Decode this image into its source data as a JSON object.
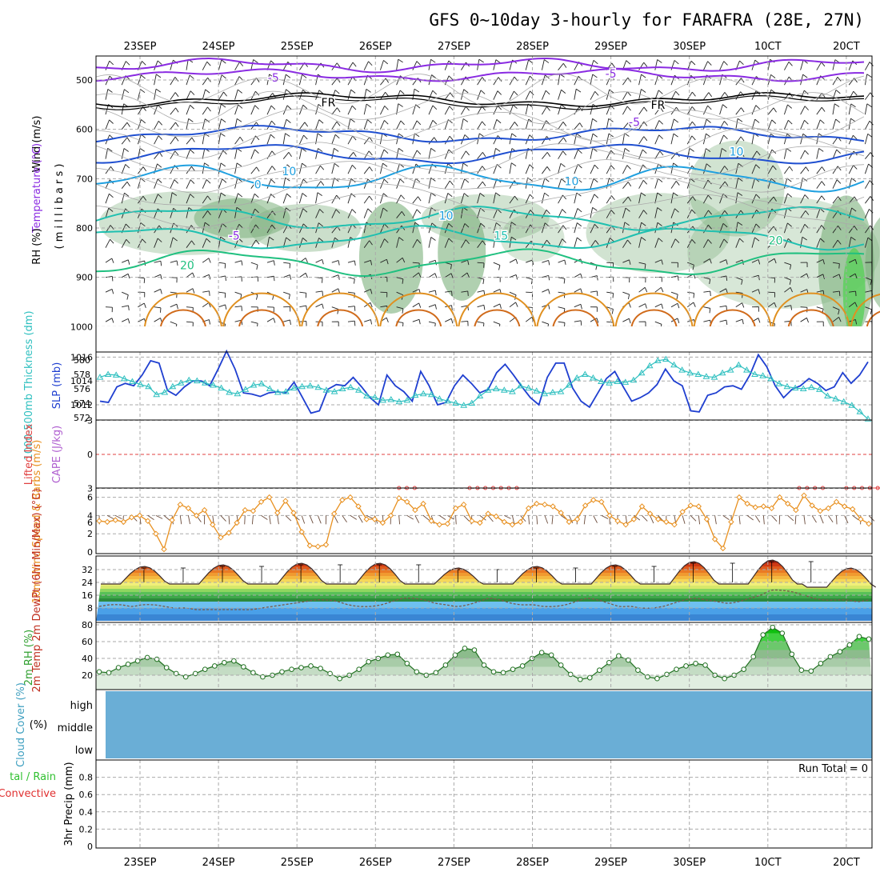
{
  "title": "GFS 0~10day 3-hourly for FARAFRA (28E, 27N)",
  "dates": [
    "23SEP",
    "24SEP",
    "25SEP",
    "26SEP",
    "27SEP",
    "28SEP",
    "29SEP",
    "30SEP",
    "1OCT",
    "2OCT"
  ],
  "date_labels_display": [
    "23SEP",
    "24SEP",
    "25SEP",
    "26SEP",
    "27SEP",
    "28SEP",
    "29SEP",
    "30SEP",
    "10CT",
    "20CT"
  ],
  "colors": {
    "temp_cold": "#8a2be2",
    "freezing": "#000000",
    "temp_blue": "#1f4fd0",
    "temp_cyan": "#1fa0e0",
    "temp_teal": "#1fc0b0",
    "temp_green": "#20c080",
    "temp_warm": "#e09020",
    "slp": "#1f3fd0",
    "thickness": "#30c0c0",
    "lifted_index": "#e04040",
    "wind10m": "#e8901f",
    "rh_fill": "#40b040",
    "cloud_fill": "#6aaed6"
  },
  "chart_data": [
    {
      "type": "line",
      "name": "upper-air-cross-section",
      "title": "Wind (m/s) / Temperature (°C) / RH (%)",
      "ylabel": "millibars",
      "y_ticks": [
        500,
        600,
        700,
        800,
        900,
        1000
      ],
      "ylim": [
        1050,
        450
      ],
      "panel_labels": [
        "Wind (m/s)",
        "Temperature (°C)",
        "RH (%)",
        "( m i l l i b a r s )"
      ],
      "isotherm_labels": [
        {
          "label": "-5",
          "level": 495,
          "day": 1.7
        },
        {
          "label": "-5",
          "level": 487,
          "day": 6.0
        },
        {
          "label": "FR",
          "level": 545,
          "day": 2.4
        },
        {
          "label": "FR",
          "level": 550,
          "day": 6.6
        },
        {
          "label": "-5",
          "level": 585,
          "day": 6.3
        },
        {
          "label": "0",
          "level": 712,
          "day": 1.5
        },
        {
          "label": "10",
          "level": 705,
          "day": 5.5
        },
        {
          "label": "-5",
          "level": 815,
          "day": 1.2
        },
        {
          "label": "15",
          "level": 815,
          "day": 4.6
        },
        {
          "label": "20",
          "level": 875,
          "day": 0.6
        },
        {
          "label": "20",
          "level": 825,
          "day": 8.1
        },
        {
          "label": "10",
          "level": 685,
          "day": 1.9
        },
        {
          "label": "10",
          "level": 775,
          "day": 3.9
        },
        {
          "label": "10",
          "level": 645,
          "day": 7.6
        }
      ]
    },
    {
      "type": "line",
      "name": "slp-thickness",
      "ylabel_left": "1000-500mb Thickness (dm)",
      "ylabel_right": "SLP (mb)",
      "thickness_ticks": [
        572,
        574,
        576,
        578,
        580
      ],
      "slp_ticks": [
        1012,
        1014,
        1016
      ],
      "series": [
        {
          "name": "SLP (mb)",
          "values": [
            1012.3,
            1012.2,
            1013.5,
            1013.8,
            1013.6,
            1014.5,
            1015.7,
            1015.5,
            1013.2,
            1012.8,
            1013.5,
            1014.0,
            1014.0,
            1013.6,
            1015.0,
            1016.5,
            1015.0,
            1013.0,
            1012.9,
            1012.7,
            1013.0,
            1013.1,
            1013.0,
            1013.9,
            1012.6,
            1011.3,
            1011.5,
            1013.3,
            1013.7,
            1013.6,
            1014.3,
            1013.5,
            1012.6,
            1012.0,
            1014.5,
            1013.6,
            1013.1,
            1012.3,
            1014.8,
            1013.6,
            1012.0,
            1012.2,
            1013.6,
            1014.5,
            1013.8,
            1013.0,
            1013.3,
            1014.7,
            1015.4,
            1014.5,
            1013.5,
            1012.6,
            1012.0,
            1014.3,
            1015.5,
            1015.5,
            1013.4,
            1012.3,
            1011.8,
            1013.0,
            1014.2,
            1014.8,
            1013.5,
            1012.3,
            1012.6,
            1013.0,
            1013.7,
            1015.0,
            1014.0,
            1013.6,
            1011.5,
            1011.4,
            1012.8,
            1013.0,
            1013.5,
            1013.6,
            1013.3,
            1014.5,
            1016.2,
            1015.2,
            1013.6,
            1012.6,
            1013.3,
            1013.6,
            1014.2,
            1013.8,
            1013.2,
            1013.5,
            1014.7,
            1013.8,
            1014.5,
            1015.6
          ]
        },
        {
          "name": "1000-500mb Thickness (dm)",
          "values": [
            577.6,
            578.0,
            577.9,
            577.4,
            577.0,
            576.6,
            576.3,
            575.2,
            575.5,
            576.3,
            576.8,
            577.2,
            577.1,
            576.8,
            576.5,
            576.1,
            575.5,
            575.3,
            575.9,
            576.5,
            576.7,
            576.0,
            575.5,
            575.6,
            576.1,
            576.3,
            576.4,
            576.2,
            575.8,
            575.6,
            576.0,
            576.2,
            575.8,
            575.0,
            574.8,
            574.4,
            574.5,
            574.2,
            574.4,
            575.1,
            575.3,
            575.2,
            574.6,
            574.3,
            574.0,
            573.7,
            574.0,
            575.0,
            575.8,
            576.0,
            575.8,
            575.6,
            576.4,
            576.1,
            575.7,
            575.3,
            575.5,
            575.6,
            576.5,
            577.5,
            578.0,
            577.5,
            577.0,
            576.8,
            577.0,
            576.9,
            577.2,
            578.2,
            579.2,
            579.9,
            580.1,
            579.3,
            578.6,
            578.2,
            578.0,
            577.7,
            577.6,
            578.2,
            578.6,
            579.3,
            578.6,
            578.0,
            577.8,
            577.4,
            576.7,
            576.3,
            576.1,
            576.0,
            576.2,
            575.9,
            575.0,
            574.6,
            574.2,
            573.7,
            572.8,
            571.8
          ]
        }
      ]
    },
    {
      "type": "line",
      "name": "lifted-index-cape",
      "ylabel_left": "Lifted Index",
      "ylabel_right": "CAPE (J/kg)",
      "li_ticks": [
        "-3",
        "0",
        "3",
        "6"
      ],
      "series": [
        {
          "name": "Lifted Index (bump 1)",
          "x_day": [
            3.3,
            3.4,
            3.5
          ],
          "values": [
            6.0,
            5.2,
            6.0
          ]
        },
        {
          "name": "Lifted Index (bump 2)",
          "x_day": [
            4.2,
            4.3,
            4.4,
            4.5,
            4.6,
            4.7,
            4.8
          ],
          "values": [
            6.0,
            4.6,
            3.8,
            3.3,
            3.8,
            4.6,
            6.0
          ]
        },
        {
          "name": "Lifted Index (bump 3)",
          "x_day": [
            8.4,
            8.5,
            8.6,
            8.7
          ],
          "values": [
            6.0,
            5.3,
            5.0,
            5.8
          ]
        },
        {
          "name": "Lifted Index (bump 4)",
          "x_day": [
            9.0,
            9.1,
            9.2,
            9.3,
            9.4,
            9.5
          ],
          "values": [
            6.0,
            4.0,
            3.2,
            3.7,
            4.1,
            5.0
          ]
        }
      ]
    },
    {
      "type": "line",
      "name": "10m-wind",
      "ylabel": "10m Wind Speed & Barbs (m/s)",
      "y_ticks": [
        0,
        2,
        4,
        6
      ],
      "ylim": [
        0,
        7
      ],
      "series": [
        {
          "name": "10m Wind Speed (m/s)",
          "values": [
            3.4,
            3.3,
            3.5,
            3.3,
            3.8,
            4.0,
            3.4,
            2.0,
            0.3,
            3.5,
            5.2,
            4.8,
            4.0,
            4.6,
            3.0,
            1.6,
            2.1,
            3.2,
            4.6,
            4.5,
            5.5,
            6.0,
            4.3,
            5.6,
            4.3,
            2.2,
            0.7,
            0.6,
            0.8,
            4.2,
            5.7,
            6.0,
            5.0,
            3.6,
            3.6,
            3.2,
            4.0,
            5.9,
            5.5,
            4.6,
            5.3,
            3.4,
            3.0,
            3.1,
            4.8,
            5.2,
            3.4,
            3.2,
            4.2,
            3.9,
            3.3,
            3.0,
            3.3,
            4.8,
            5.3,
            5.2,
            5.0,
            4.3,
            3.3,
            3.6,
            5.1,
            5.7,
            5.5,
            4.0,
            3.4,
            3.0,
            3.6,
            5.0,
            4.2,
            3.6,
            3.3,
            3.0,
            4.4,
            5.1,
            5.0,
            3.6,
            1.4,
            0.4,
            3.3,
            6.0,
            5.3,
            4.9,
            5.0,
            4.8,
            6.0,
            5.3,
            4.6,
            6.2,
            5.1,
            4.5,
            4.8,
            5.5,
            5.0,
            4.7,
            3.6,
            3.1
          ]
        }
      ]
    },
    {
      "type": "area",
      "name": "2m-temperature",
      "ylabel": "2m Temp 2m DewPt (6hr Min/Max) (°C)",
      "y_ticks": [
        8,
        16,
        24,
        32
      ],
      "series": [
        {
          "name": "2m Temp (°C) daily max",
          "values": [
            34,
            35,
            36,
            36,
            33,
            34,
            35,
            37,
            38,
            33
          ]
        },
        {
          "name": "2m Temp (°C) daily min",
          "values": [
            23,
            23,
            23,
            23,
            23,
            23,
            23,
            23,
            23,
            21
          ]
        },
        {
          "name": "2m DewPt (°C)",
          "values": [
            9,
            10,
            10,
            9,
            10,
            10,
            9,
            8,
            8,
            7,
            7,
            7,
            7,
            7,
            7,
            8,
            9,
            10,
            11,
            12,
            13,
            13,
            12,
            10,
            9,
            9,
            10,
            12,
            14,
            14,
            13,
            11,
            10,
            9,
            10,
            12,
            14,
            13,
            11,
            10,
            10,
            9,
            9,
            10,
            12,
            14,
            13,
            11,
            9,
            9,
            8,
            8,
            9,
            11,
            13,
            14,
            13,
            12,
            11,
            12,
            14,
            16,
            19,
            19,
            18,
            16,
            14,
            13,
            13,
            13,
            12,
            13
          ]
        }
      ]
    },
    {
      "type": "area",
      "name": "2m-relative-humidity",
      "ylabel": "2m RH (%)",
      "y_ticks": [
        20,
        40,
        60,
        80
      ],
      "ylim": [
        10,
        82
      ],
      "series": [
        {
          "name": "2m RH (%)",
          "values": [
            24,
            23,
            29,
            33,
            37,
            41,
            39,
            29,
            22,
            18,
            22,
            27,
            31,
            35,
            37,
            30,
            23,
            18,
            20,
            24,
            27,
            29,
            31,
            28,
            22,
            16,
            20,
            27,
            36,
            40,
            44,
            45,
            34,
            24,
            20,
            23,
            32,
            44,
            52,
            50,
            32,
            24,
            23,
            27,
            31,
            40,
            47,
            44,
            32,
            21,
            15,
            17,
            26,
            35,
            43,
            38,
            26,
            18,
            16,
            21,
            27,
            31,
            34,
            32,
            20,
            16,
            20,
            27,
            42,
            68,
            77,
            70,
            45,
            26,
            25,
            34,
            42,
            48,
            56,
            66,
            63
          ]
        }
      ]
    },
    {
      "type": "area",
      "name": "cloud-cover",
      "ylabel": "Cloud Cover (%)",
      "levels": [
        "high",
        "middle",
        "low"
      ],
      "values": [
        0,
        0,
        0
      ]
    },
    {
      "type": "bar",
      "name": "3hr-precip",
      "ylabel": "3hr Precip (mm)",
      "ylabel_side": "Total / Rain / Convective",
      "y_ticks": [
        "0",
        "0.2",
        "0.4",
        "0.6",
        "0.8"
      ],
      "ylim": [
        0,
        0.95
      ],
      "run_total_label": "Run Total = 0",
      "values": [
        0,
        0,
        0,
        0,
        0,
        0,
        0,
        0,
        0,
        0
      ]
    }
  ]
}
